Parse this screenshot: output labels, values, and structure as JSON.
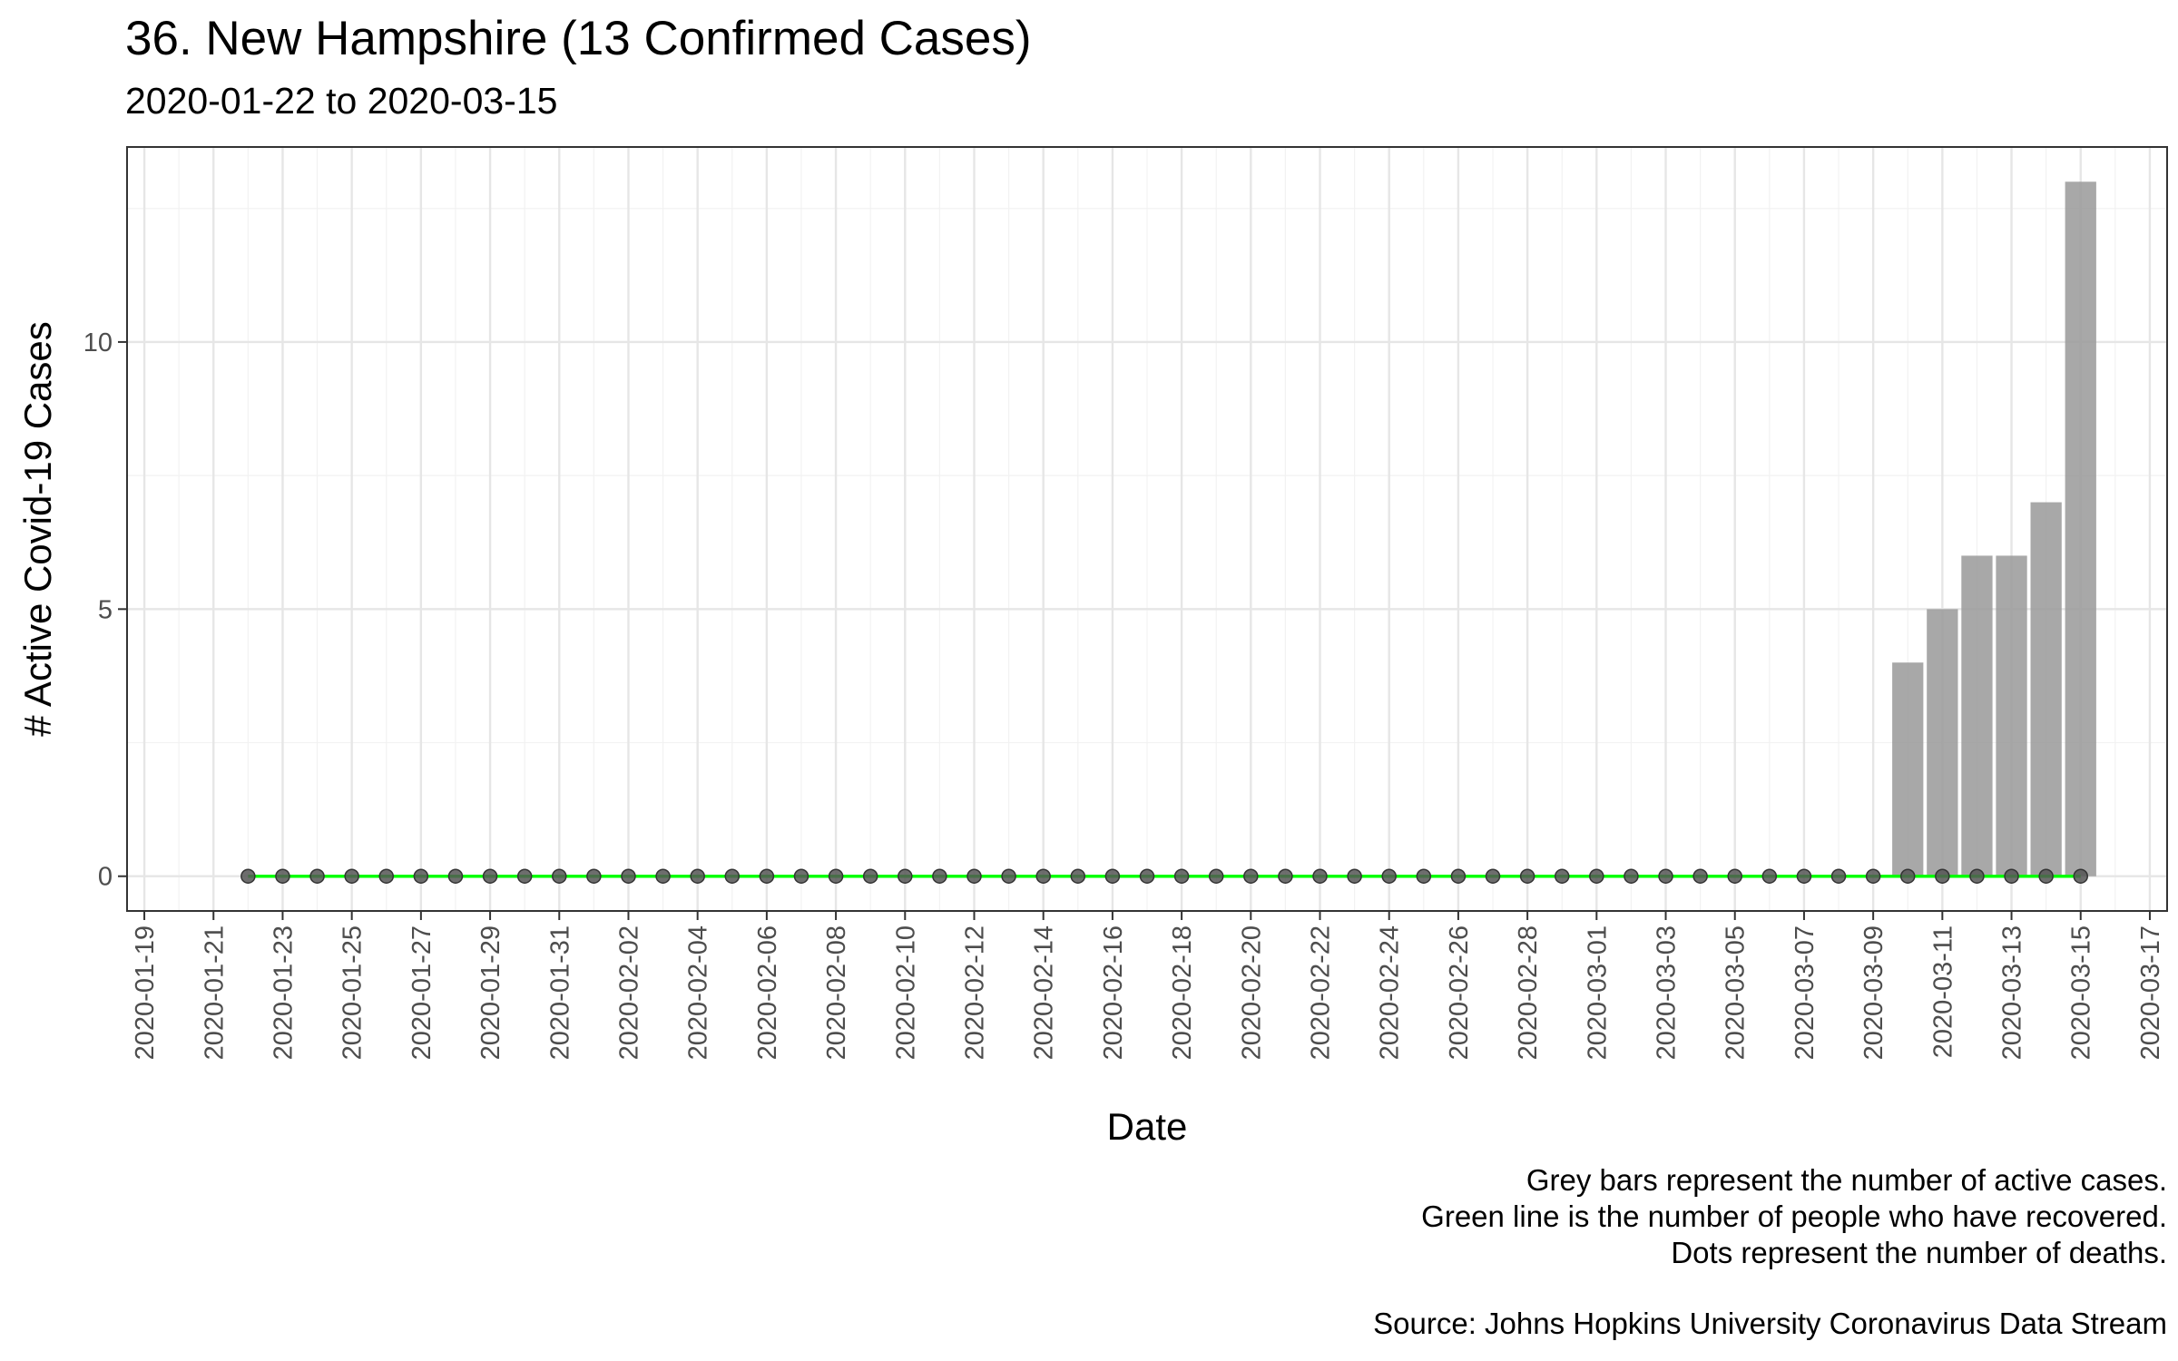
{
  "chart_data": {
    "type": "bar",
    "title": "36. New Hampshire (13 Confirmed Cases)",
    "subtitle": "2020-01-22 to 2020-03-15",
    "xlabel": "Date",
    "ylabel": "# Active Covid-19 Cases",
    "x_range": [
      "2020-01-19",
      "2020-03-17"
    ],
    "x_ticks": [
      "2020-01-19",
      "2020-01-21",
      "2020-01-23",
      "2020-01-25",
      "2020-01-27",
      "2020-01-29",
      "2020-01-31",
      "2020-02-02",
      "2020-02-04",
      "2020-02-06",
      "2020-02-08",
      "2020-02-10",
      "2020-02-12",
      "2020-02-14",
      "2020-02-16",
      "2020-02-18",
      "2020-02-20",
      "2020-02-22",
      "2020-02-24",
      "2020-02-26",
      "2020-02-28",
      "2020-03-01",
      "2020-03-03",
      "2020-03-05",
      "2020-03-07",
      "2020-03-09",
      "2020-03-11",
      "2020-03-13",
      "2020-03-15",
      "2020-03-17"
    ],
    "ylim": [
      -0.65,
      13.65
    ],
    "y_ticks": [
      0,
      5,
      10
    ],
    "grid": true,
    "series": [
      {
        "kind": "bar",
        "color": "#999999",
        "points": [
          {
            "x": "2020-03-10",
            "y": 4
          },
          {
            "x": "2020-03-11",
            "y": 5
          },
          {
            "x": "2020-03-12",
            "y": 6
          },
          {
            "x": "2020-03-13",
            "y": 6
          },
          {
            "x": "2020-03-14",
            "y": 7
          },
          {
            "x": "2020-03-15",
            "y": 13
          }
        ]
      },
      {
        "kind": "line",
        "color": "#00ff00",
        "start": "2020-01-22",
        "end": "2020-03-15",
        "value": 0
      },
      {
        "kind": "dots",
        "color": "#555555",
        "start": "2020-01-22",
        "end": "2020-03-15",
        "value": 0
      }
    ]
  },
  "captions": {
    "line1": "Grey bars represent the number of active cases.",
    "line2": "Green line is the number of people who have recovered.",
    "line3": "Dots represent the number of deaths.",
    "source": "Source: Johns Hopkins University Coronavirus Data Stream"
  }
}
